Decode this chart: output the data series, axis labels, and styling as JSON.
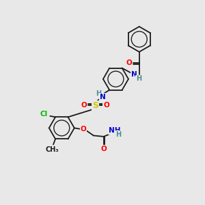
{
  "bg_color": "#e8e8e8",
  "bond_color": "#1a1a1a",
  "atom_colors": {
    "O": "#ff0000",
    "N": "#0000cc",
    "S": "#cccc00",
    "Cl": "#00bb00",
    "C": "#1a1a1a",
    "H": "#4a9090"
  },
  "figsize": [
    3.0,
    3.0
  ],
  "dpi": 100,
  "lw": 1.3,
  "r_hex": 0.62
}
